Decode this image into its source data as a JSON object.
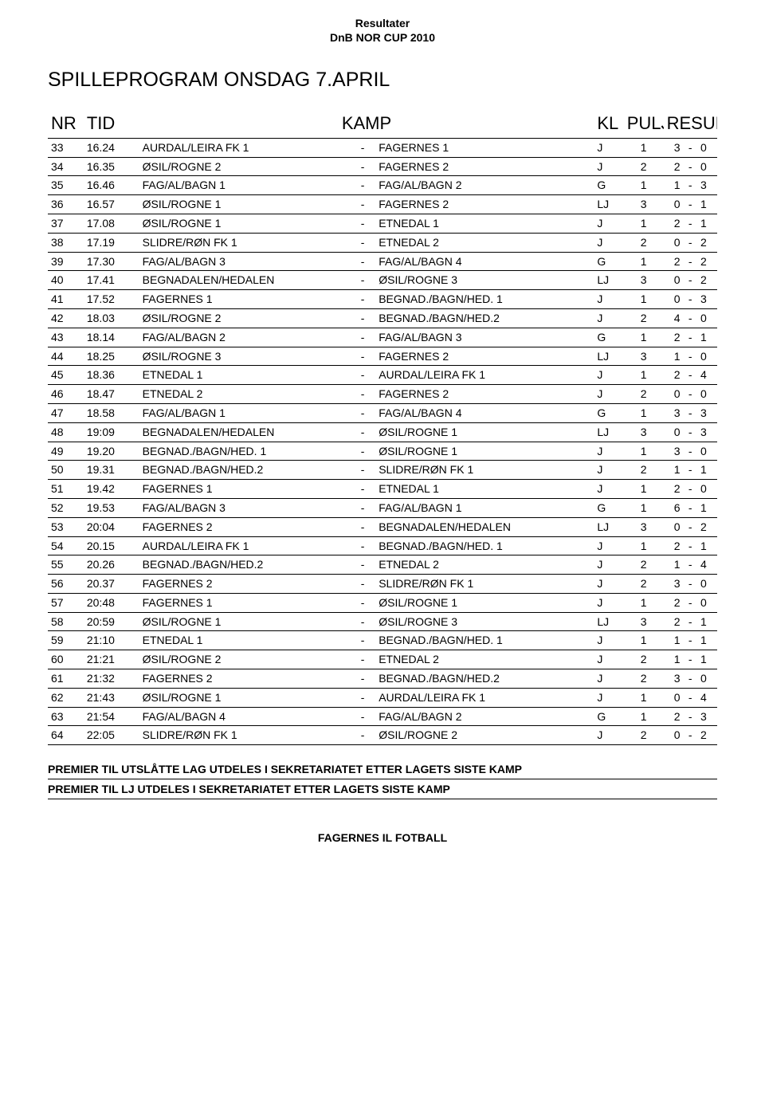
{
  "header": {
    "line1": "Resultater",
    "line2": "DnB NOR CUP 2010"
  },
  "title": "SPILLEPROGRAM ONSDAG 7.APRIL",
  "columns": {
    "nr": "NR",
    "tid": "TID",
    "kamp": "KAMP",
    "kl": "KL",
    "pulje": "PULJE",
    "resultat": "RESULTAT"
  },
  "rows": [
    {
      "nr": "33",
      "tid": "16.24",
      "home": "AURDAL/LEIRA FK 1",
      "away": "FAGERNES 1",
      "kl": "J",
      "pulje": "1",
      "s1": "3",
      "s2": "0"
    },
    {
      "nr": "34",
      "tid": "16.35",
      "home": "ØSIL/ROGNE 2",
      "away": "FAGERNES 2",
      "kl": "J",
      "pulje": "2",
      "s1": "2",
      "s2": "0"
    },
    {
      "nr": "35",
      "tid": "16.46",
      "home": "FAG/AL/BAGN 1",
      "away": "FAG/AL/BAGN 2",
      "kl": "G",
      "pulje": "1",
      "s1": "1",
      "s2": "3"
    },
    {
      "nr": "36",
      "tid": "16.57",
      "home": "ØSIL/ROGNE 1",
      "away": "FAGERNES 2",
      "kl": "LJ",
      "pulje": "3",
      "s1": "0",
      "s2": "1"
    },
    {
      "nr": "37",
      "tid": "17.08",
      "home": "ØSIL/ROGNE 1",
      "away": "ETNEDAL 1",
      "kl": "J",
      "pulje": "1",
      "s1": "2",
      "s2": "1"
    },
    {
      "nr": "38",
      "tid": "17.19",
      "home": "SLIDRE/RØN FK 1",
      "away": "ETNEDAL 2",
      "kl": "J",
      "pulje": "2",
      "s1": "0",
      "s2": "2"
    },
    {
      "nr": "39",
      "tid": "17.30",
      "home": "FAG/AL/BAGN 3",
      "away": "FAG/AL/BAGN 4",
      "kl": "G",
      "pulje": "1",
      "s1": "2",
      "s2": "2"
    },
    {
      "nr": "40",
      "tid": "17.41",
      "home": "BEGNADALEN/HEDALEN",
      "away": "ØSIL/ROGNE 3",
      "kl": "LJ",
      "pulje": "3",
      "s1": "0",
      "s2": "2"
    },
    {
      "nr": "41",
      "tid": "17.52",
      "home": "FAGERNES 1",
      "away": "BEGNAD./BAGN/HED. 1",
      "kl": "J",
      "pulje": "1",
      "s1": "0",
      "s2": "3"
    },
    {
      "nr": "42",
      "tid": "18.03",
      "home": "ØSIL/ROGNE 2",
      "away": "BEGNAD./BAGN/HED.2",
      "kl": "J",
      "pulje": "2",
      "s1": "4",
      "s2": "0"
    },
    {
      "nr": "43",
      "tid": "18.14",
      "home": "FAG/AL/BAGN 2",
      "away": "FAG/AL/BAGN 3",
      "kl": "G",
      "pulje": "1",
      "s1": "2",
      "s2": "1"
    },
    {
      "nr": "44",
      "tid": "18.25",
      "home": "ØSIL/ROGNE 3",
      "away": "FAGERNES 2",
      "kl": "LJ",
      "pulje": "3",
      "s1": "1",
      "s2": "0"
    },
    {
      "nr": "45",
      "tid": "18.36",
      "home": "ETNEDAL 1",
      "away": "AURDAL/LEIRA FK 1",
      "kl": "J",
      "pulje": "1",
      "s1": "2",
      "s2": "4"
    },
    {
      "nr": "46",
      "tid": "18.47",
      "home": "ETNEDAL 2",
      "away": "FAGERNES 2",
      "kl": "J",
      "pulje": "2",
      "s1": "0",
      "s2": "0"
    },
    {
      "nr": "47",
      "tid": "18.58",
      "home": "FAG/AL/BAGN 1",
      "away": "FAG/AL/BAGN 4",
      "kl": "G",
      "pulje": "1",
      "s1": "3",
      "s2": "3"
    },
    {
      "nr": "48",
      "tid": "19:09",
      "home": "BEGNADALEN/HEDALEN",
      "away": "ØSIL/ROGNE 1",
      "kl": "LJ",
      "pulje": "3",
      "s1": "0",
      "s2": "3"
    },
    {
      "nr": "49",
      "tid": "19.20",
      "home": "BEGNAD./BAGN/HED. 1",
      "away": "ØSIL/ROGNE 1",
      "kl": "J",
      "pulje": "1",
      "s1": "3",
      "s2": "0"
    },
    {
      "nr": "50",
      "tid": "19.31",
      "home": "BEGNAD./BAGN/HED.2",
      "away": "SLIDRE/RØN FK 1",
      "kl": "J",
      "pulje": "2",
      "s1": "1",
      "s2": "1"
    },
    {
      "nr": "51",
      "tid": "19.42",
      "home": "FAGERNES 1",
      "away": "ETNEDAL 1",
      "kl": "J",
      "pulje": "1",
      "s1": "2",
      "s2": "0"
    },
    {
      "nr": "52",
      "tid": "19.53",
      "home": "FAG/AL/BAGN 3",
      "away": "FAG/AL/BAGN 1",
      "kl": "G",
      "pulje": "1",
      "s1": "6",
      "s2": "1"
    },
    {
      "nr": "53",
      "tid": "20:04",
      "home": "FAGERNES 2",
      "away": "BEGNADALEN/HEDALEN",
      "kl": "LJ",
      "pulje": "3",
      "s1": "0",
      "s2": "2"
    },
    {
      "nr": "54",
      "tid": "20.15",
      "home": "AURDAL/LEIRA FK 1",
      "away": "BEGNAD./BAGN/HED. 1",
      "kl": "J",
      "pulje": "1",
      "s1": "2",
      "s2": "1"
    },
    {
      "nr": "55",
      "tid": "20.26",
      "home": "BEGNAD./BAGN/HED.2",
      "away": "ETNEDAL 2",
      "kl": "J",
      "pulje": "2",
      "s1": "1",
      "s2": "4"
    },
    {
      "nr": "56",
      "tid": "20.37",
      "home": "FAGERNES 2",
      "away": "SLIDRE/RØN FK 1",
      "kl": "J",
      "pulje": "2",
      "s1": "3",
      "s2": "0"
    },
    {
      "nr": "57",
      "tid": "20:48",
      "home": "FAGERNES 1",
      "away": "ØSIL/ROGNE 1",
      "kl": "J",
      "pulje": "1",
      "s1": "2",
      "s2": "0"
    },
    {
      "nr": "58",
      "tid": "20:59",
      "home": "ØSIL/ROGNE 1",
      "away": "ØSIL/ROGNE 3",
      "kl": "LJ",
      "pulje": "3",
      "s1": "2",
      "s2": "1"
    },
    {
      "nr": "59",
      "tid": "21:10",
      "home": "ETNEDAL 1",
      "away": "BEGNAD./BAGN/HED. 1",
      "kl": "J",
      "pulje": "1",
      "s1": "1",
      "s2": "1"
    },
    {
      "nr": "60",
      "tid": "21:21",
      "home": "ØSIL/ROGNE 2",
      "away": "ETNEDAL 2",
      "kl": "J",
      "pulje": "2",
      "s1": "1",
      "s2": "1"
    },
    {
      "nr": "61",
      "tid": "21:32",
      "home": "FAGERNES 2",
      "away": "BEGNAD./BAGN/HED.2",
      "kl": "J",
      "pulje": "2",
      "s1": "3",
      "s2": "0"
    },
    {
      "nr": "62",
      "tid": "21:43",
      "home": "ØSIL/ROGNE 1",
      "away": "AURDAL/LEIRA FK 1",
      "kl": "J",
      "pulje": "1",
      "s1": "0",
      "s2": "4"
    },
    {
      "nr": "63",
      "tid": "21:54",
      "home": "FAG/AL/BAGN 4",
      "away": "FAG/AL/BAGN 2",
      "kl": "G",
      "pulje": "1",
      "s1": "2",
      "s2": "3"
    },
    {
      "nr": "64",
      "tid": "22:05",
      "home": "SLIDRE/RØN FK 1",
      "away": "ØSIL/ROGNE 2",
      "kl": "J",
      "pulje": "2",
      "s1": "0",
      "s2": "2"
    }
  ],
  "footer": {
    "line1": "PREMIER TIL UTSLÅTTE LAG UTDELES I SEKRETARIATET ETTER LAGETS SISTE KAMP",
    "line2": "PREMIER TIL LJ UTDELES I SEKRETARIATET ETTER LAGETS SISTE KAMP"
  },
  "bottomLabel": "FAGERNES IL FOTBALL",
  "separator": "-"
}
